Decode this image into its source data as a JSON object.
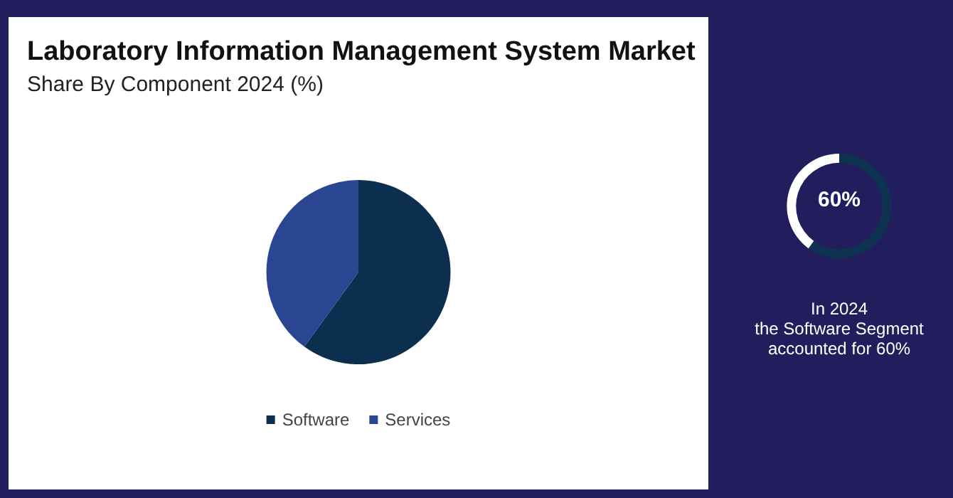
{
  "chart_data": [
    {
      "type": "pie",
      "title": "Laboratory Information Management System Market",
      "subtitle": "Share By Component 2024 (%)",
      "categories": [
        "Software",
        "Services"
      ],
      "values": [
        60,
        40
      ],
      "colors": [
        "#0d2f4f",
        "#2a4592"
      ],
      "legend": "bottom"
    },
    {
      "type": "donut",
      "title": "60%",
      "categories": [
        null,
        null
      ],
      "values": [
        60,
        40
      ],
      "colors": [
        "#0d3350",
        "#ffffff"
      ],
      "annotations": [
        "In 2024\nthe Software Segment\naccounted for 60%"
      ]
    }
  ]
}
